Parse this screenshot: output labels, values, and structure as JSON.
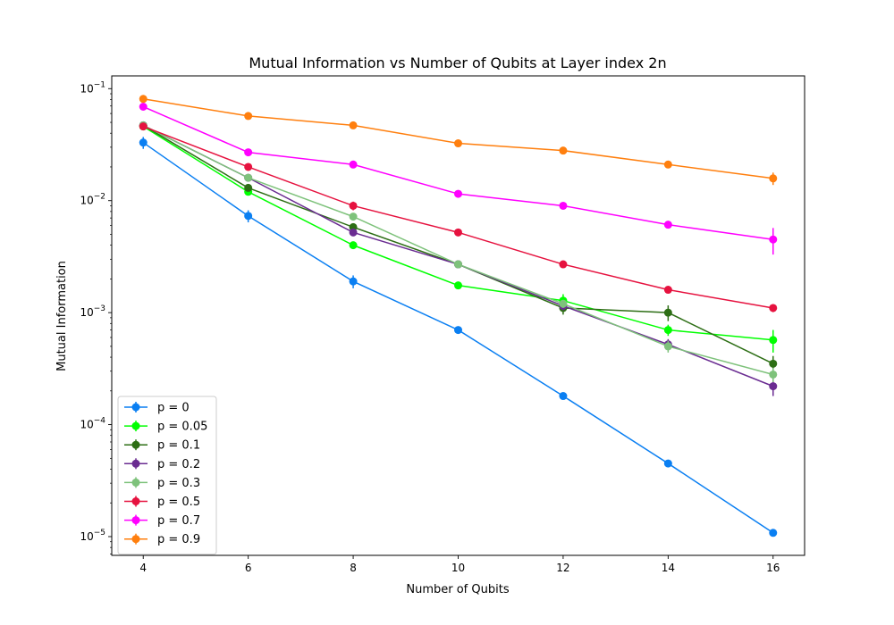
{
  "chart_data": {
    "type": "line",
    "title": "Mutual Information vs Number of Qubits at Layer index 2n",
    "xlabel": "Number of Qubits",
    "ylabel": "Mutual Information",
    "y_scale": "log",
    "ylim": [
      6.8e-06,
      0.13
    ],
    "xlim": [
      3.4,
      16.6
    ],
    "grid": false,
    "legend_position": "lower-left",
    "x": [
      4,
      6,
      8,
      10,
      12,
      14,
      16
    ],
    "x_ticks": [
      {
        "value": 4,
        "label": "4"
      },
      {
        "value": 6,
        "label": "6"
      },
      {
        "value": 8,
        "label": "8"
      },
      {
        "value": 10,
        "label": "10"
      },
      {
        "value": 12,
        "label": "12"
      },
      {
        "value": 14,
        "label": "14"
      },
      {
        "value": 16,
        "label": "16"
      }
    ],
    "y_ticks": [
      {
        "value": 1e-05,
        "base": "10",
        "exp": "−5"
      },
      {
        "value": 0.0001,
        "base": "10",
        "exp": "−4"
      },
      {
        "value": 0.001,
        "base": "10",
        "exp": "−3"
      },
      {
        "value": 0.01,
        "base": "10",
        "exp": "−2"
      },
      {
        "value": 0.1,
        "base": "10",
        "exp": "−1"
      }
    ],
    "series": [
      {
        "name": "p = 0",
        "color": "#0a7ff2",
        "values": [
          0.033,
          0.0073,
          0.0019,
          0.0007,
          0.00018,
          4.5e-05,
          1.08e-05
        ],
        "errors": [
          0.004,
          0.0009,
          0.00025,
          5e-05,
          1.2e-05,
          3e-06,
          7e-07
        ]
      },
      {
        "name": "p = 0.05",
        "color": "#00ff00",
        "values": [
          0.046,
          0.012,
          0.004,
          0.00175,
          0.00128,
          0.0007,
          0.00057
        ],
        "errors": [
          0.002,
          0.0007,
          0.0002,
          8e-05,
          0.00018,
          8e-05,
          0.00013
        ]
      },
      {
        "name": "p = 0.1",
        "color": "#2d6e15",
        "values": [
          0.047,
          0.013,
          0.0058,
          0.0027,
          0.0011,
          0.001,
          0.00035
        ],
        "errors": [
          0.002,
          0.0008,
          0.0003,
          0.00012,
          0.00014,
          0.00016,
          6e-05
        ]
      },
      {
        "name": "p = 0.2",
        "color": "#6a2c91",
        "values": [
          0.047,
          0.016,
          0.0052,
          0.0027,
          0.00115,
          0.00052,
          0.00022
        ],
        "errors": [
          0.002,
          0.0008,
          0.0003,
          0.00012,
          0.0001,
          6e-05,
          4e-05
        ]
      },
      {
        "name": "p = 0.3",
        "color": "#7ec27b",
        "values": [
          0.047,
          0.016,
          0.0072,
          0.0027,
          0.0012,
          0.0005,
          0.00028
        ],
        "errors": [
          0.002,
          0.0008,
          0.0004,
          0.00012,
          0.0001,
          6e-05,
          4e-05
        ]
      },
      {
        "name": "p = 0.5",
        "color": "#e6123f",
        "values": [
          0.046,
          0.02,
          0.009,
          0.0052,
          0.0027,
          0.0016,
          0.0011
        ],
        "errors": [
          0.002,
          0.0012,
          0.0008,
          0.00022,
          0.00012,
          8e-05,
          9e-05
        ]
      },
      {
        "name": "p = 0.7",
        "color": "#ff00ff",
        "values": [
          0.069,
          0.027,
          0.021,
          0.0115,
          0.009,
          0.0061,
          0.0045
        ],
        "errors": [
          0.002,
          0.0018,
          0.0015,
          0.0004,
          0.0003,
          0.0002,
          0.0012
        ]
      },
      {
        "name": "p = 0.9",
        "color": "#ff7f0e",
        "values": [
          0.081,
          0.057,
          0.047,
          0.0325,
          0.028,
          0.021,
          0.0158
        ],
        "errors": [
          0.002,
          0.0015,
          0.0015,
          0.0008,
          0.0006,
          0.0005,
          0.002
        ]
      }
    ]
  }
}
